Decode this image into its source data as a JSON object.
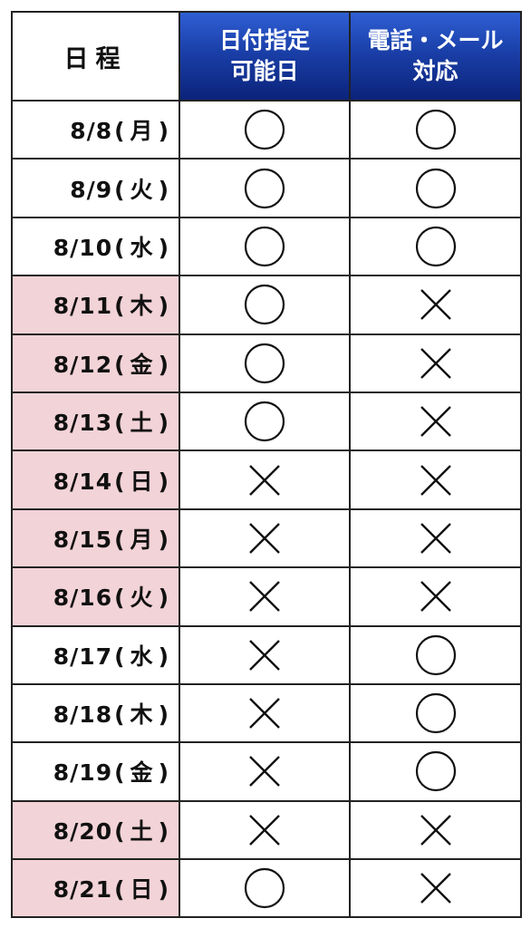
{
  "header": {
    "date_label": "日程",
    "col_a_line1": "日付指定",
    "col_a_line2": "可能日",
    "col_b_line1": "電話・メール",
    "col_b_line2": "対応"
  },
  "colors": {
    "holiday_bg": "#f2d3d7",
    "header_blue": "#1a3fa8"
  },
  "marks": {
    "yes": "〇",
    "no": "×"
  },
  "rows": [
    {
      "date": "8/8",
      "weekday": "月",
      "holiday": false,
      "date_available": "yes",
      "contact": "yes"
    },
    {
      "date": "8/9",
      "weekday": "火",
      "holiday": false,
      "date_available": "yes",
      "contact": "yes"
    },
    {
      "date": "8/10",
      "weekday": "水",
      "holiday": false,
      "date_available": "yes",
      "contact": "yes"
    },
    {
      "date": "8/11",
      "weekday": "木",
      "holiday": true,
      "date_available": "yes",
      "contact": "no"
    },
    {
      "date": "8/12",
      "weekday": "金",
      "holiday": true,
      "date_available": "yes",
      "contact": "no"
    },
    {
      "date": "8/13",
      "weekday": "土",
      "holiday": true,
      "date_available": "yes",
      "contact": "no"
    },
    {
      "date": "8/14",
      "weekday": "日",
      "holiday": true,
      "date_available": "no",
      "contact": "no"
    },
    {
      "date": "8/15",
      "weekday": "月",
      "holiday": true,
      "date_available": "no",
      "contact": "no"
    },
    {
      "date": "8/16",
      "weekday": "火",
      "holiday": true,
      "date_available": "no",
      "contact": "no"
    },
    {
      "date": "8/17",
      "weekday": "水",
      "holiday": false,
      "date_available": "no",
      "contact": "yes"
    },
    {
      "date": "8/18",
      "weekday": "木",
      "holiday": false,
      "date_available": "no",
      "contact": "yes"
    },
    {
      "date": "8/19",
      "weekday": "金",
      "holiday": false,
      "date_available": "no",
      "contact": "yes"
    },
    {
      "date": "8/20",
      "weekday": "土",
      "holiday": true,
      "date_available": "no",
      "contact": "no"
    },
    {
      "date": "8/21",
      "weekday": "日",
      "holiday": true,
      "date_available": "yes",
      "contact": "no"
    }
  ]
}
